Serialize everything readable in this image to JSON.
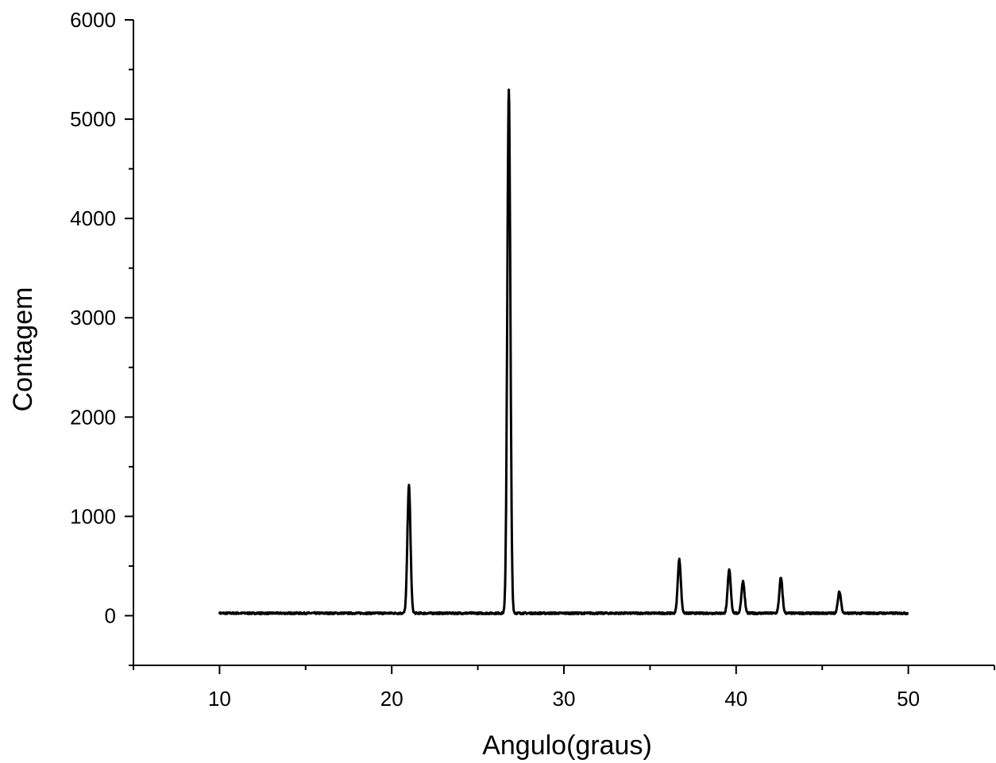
{
  "chart_data": {
    "type": "line",
    "title": "",
    "xlabel": "Angulo(graus)",
    "ylabel": "Contagem",
    "xlim": [
      5,
      55
    ],
    "ylim": [
      -500,
      6000
    ],
    "x_ticks": [
      10,
      20,
      30,
      40,
      50
    ],
    "x_tick_labels": [
      "10",
      "20",
      "30",
      "40",
      "50"
    ],
    "y_ticks": [
      0,
      1000,
      2000,
      3000,
      4000,
      5000,
      6000
    ],
    "y_tick_labels": [
      "0",
      "1000",
      "2000",
      "3000",
      "4000",
      "5000",
      "6000"
    ],
    "grid": false,
    "legend": "none",
    "line_color": "#000000",
    "series": [
      {
        "baseline": 25,
        "x_start": 10,
        "x_end": 50,
        "peaks": [
          {
            "x": 21.0,
            "y": 1310
          },
          {
            "x": 26.8,
            "y": 5290
          },
          {
            "x": 36.7,
            "y": 565
          },
          {
            "x": 39.6,
            "y": 460
          },
          {
            "x": 40.4,
            "y": 345
          },
          {
            "x": 42.6,
            "y": 380
          },
          {
            "x": 46.0,
            "y": 240
          }
        ]
      }
    ]
  }
}
